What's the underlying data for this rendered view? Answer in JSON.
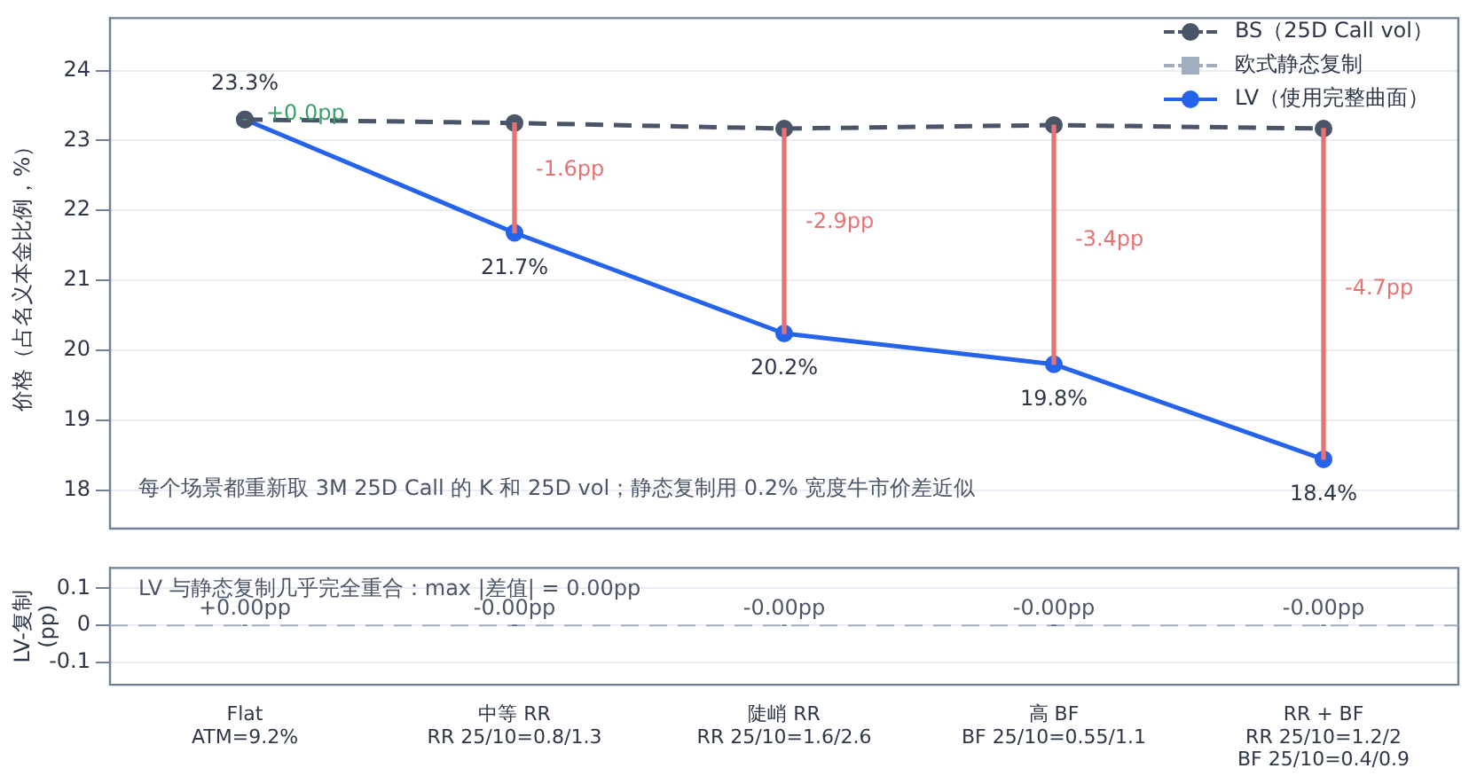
{
  "chart_data": [
    {
      "type": "line",
      "ylabel": "价格（占名义本金比例，%）",
      "categories": [
        "Flat\nATM=9.2%",
        "中等 RR\nRR 25/10=0.8/1.3",
        "陡峭 RR\nRR 25/10=1.6/2.6",
        "高 BF\nBF 25/10=0.55/1.1",
        "RR + BF\nRR 25/10=1.2/2\nBF 25/10=0.4/0.9"
      ],
      "tick_labels": "y",
      "ylim": [
        17.45,
        24.75
      ],
      "yticks": [
        18,
        19,
        20,
        21,
        22,
        23,
        24
      ],
      "grid": "y",
      "legend": "top right",
      "series": [
        {
          "type": "bar",
          "colors": [
            "#38a169",
            "#e57373",
            "#e57373",
            "#e57373",
            "#e57373"
          ],
          "base": [
            23.3,
            23.25,
            23.17,
            23.22,
            23.17
          ],
          "values": [
            0,
            -1.57,
            -2.93,
            -3.42,
            -4.73
          ]
        },
        {
          "name": "BS（25D Call vol）",
          "color": "#4a5568",
          "marker": "circle",
          "line_style": "dashed",
          "values": [
            23.3,
            23.25,
            23.17,
            23.22,
            23.17
          ]
        },
        {
          "name": "欧式静态复制",
          "color": "#a0aec0",
          "marker": "square",
          "line_style": "dashed",
          "values": [
            null,
            null,
            null,
            null,
            null
          ]
        },
        {
          "name": "LV（使用完整曲面）",
          "color": "#2563eb",
          "marker": "circle",
          "line_style": "solid",
          "values": [
            23.3,
            21.68,
            20.24,
            19.8,
            18.44
          ],
          "value_labels": [
            "23.3%",
            "21.7%",
            "20.2%",
            "19.8%",
            "18.4%"
          ]
        }
      ],
      "annotations": [
        {
          "text": "+0.0pp",
          "x": "Flat\nATM=9.2%",
          "y": 23.3
        },
        {
          "text": "-1.6pp",
          "x": "中等 RR\nRR 25/10=0.8/1.3",
          "y": 22.5
        },
        {
          "text": "-2.9pp",
          "x": "陡峭 RR\nRR 25/10=1.6/2.6",
          "y": 21.75
        },
        {
          "text": "-3.4pp",
          "x": "高 BF\nBF 25/10=0.55/1.1",
          "y": 21.5
        },
        {
          "text": "-4.7pp",
          "x": "RR + BF\nRR 25/10=1.2/2\nBF 25/10=0.4/0.9",
          "y": 20.8
        },
        "每个场景都重新取 3M 25D Call 的 K 和 25D vol；静态复制用 0.2% 宽度牛市价差近似"
      ]
    },
    {
      "type": "bar",
      "ylabel": "LV-复制\n(pp)",
      "categories": [
        "Flat\nATM=9.2%",
        "中等 RR\nRR 25/10=0.8/1.3",
        "陡峭 RR\nRR 25/10=1.6/2.6",
        "高 BF\nBF 25/10=0.55/1.1",
        "RR + BF\nRR 25/10=1.2/2\nBF 25/10=0.4/0.9"
      ],
      "ylim": [
        -0.16,
        0.155
      ],
      "yticks": [
        -0.1,
        0,
        0.1
      ],
      "grid": "y",
      "values": [
        0,
        0,
        0,
        0,
        0
      ],
      "value_labels": [
        "+0.00pp",
        "-0.00pp",
        "-0.00pp",
        "-0.00pp",
        "-0.00pp"
      ],
      "color": "#4a5568",
      "ref_lines": [
        {
          "axis": "y",
          "value": 0,
          "color": "#a0aec0",
          "line_style": "dashed"
        }
      ],
      "annotations": [
        "LV 与静态复制几乎完全重合：max |差值| = 0.00pp"
      ]
    }
  ]
}
